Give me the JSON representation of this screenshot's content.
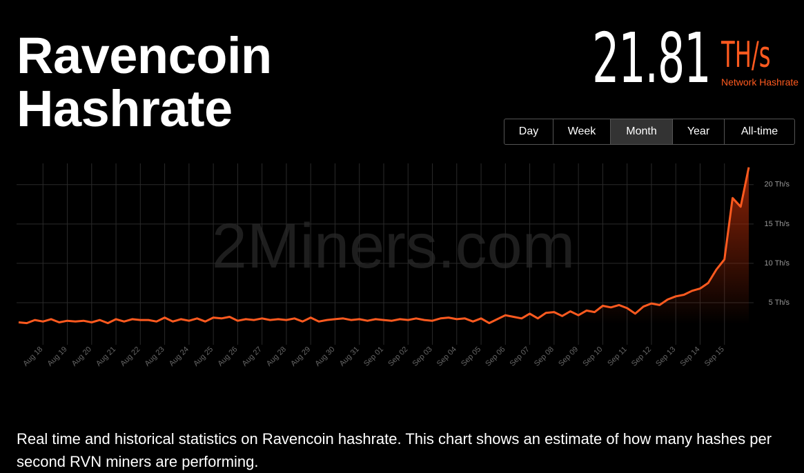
{
  "header": {
    "title_line1": "Ravencoin",
    "title_line2": "Hashrate",
    "hashrate_value": "21.81",
    "hashrate_unit": "TH/s",
    "hashrate_caption": "Network Hashrate"
  },
  "range_buttons": [
    "Day",
    "Week",
    "Month",
    "Year",
    "All-time"
  ],
  "description": "Real time and historical statistics on Ravencoin hashrate. This chart shows an estimate of how many hashes per second RVN miners are performing.",
  "chart_data": {
    "type": "line",
    "watermark": "2Miners.com",
    "categories": [
      null,
      null,
      null,
      "Aug 18",
      null,
      null,
      "Aug 19",
      null,
      null,
      "Aug 20",
      null,
      null,
      "Aug 21",
      null,
      null,
      "Aug 22",
      null,
      null,
      "Aug 23",
      null,
      null,
      "Aug 24",
      null,
      null,
      "Aug 25",
      null,
      null,
      "Aug 26",
      null,
      null,
      "Aug 27",
      null,
      null,
      "Aug 28",
      null,
      null,
      "Aug 29",
      null,
      null,
      "Aug 30",
      null,
      null,
      "Aug 31",
      null,
      null,
      "Sep 01",
      null,
      null,
      "Sep 02",
      null,
      null,
      "Sep 03",
      null,
      null,
      "Sep 04",
      null,
      null,
      "Sep 05",
      null,
      null,
      "Sep 06",
      null,
      null,
      "Sep 07",
      null,
      null,
      "Sep 08",
      null,
      null,
      "Sep 09",
      null,
      null,
      "Sep 10",
      null,
      null,
      "Sep 11",
      null,
      null,
      "Sep 12",
      null,
      null,
      "Sep 13",
      null,
      null,
      "Sep 14",
      null,
      null,
      "Sep 15",
      null,
      null,
      null
    ],
    "series": [
      {
        "name": "Hashrate",
        "color": "#ff5a1f",
        "values": [
          2.5,
          2.4,
          2.8,
          2.6,
          2.9,
          2.5,
          2.7,
          2.6,
          2.7,
          2.5,
          2.8,
          2.4,
          2.9,
          2.6,
          2.9,
          2.8,
          2.8,
          2.6,
          3.1,
          2.6,
          2.9,
          2.7,
          3.0,
          2.6,
          3.1,
          3.0,
          3.2,
          2.7,
          2.9,
          2.8,
          3.0,
          2.8,
          2.9,
          2.8,
          3.0,
          2.6,
          3.1,
          2.6,
          2.8,
          2.9,
          3.0,
          2.8,
          2.9,
          2.7,
          2.9,
          2.8,
          2.7,
          2.9,
          2.8,
          3.0,
          2.8,
          2.7,
          3.0,
          3.1,
          2.9,
          3.0,
          2.6,
          3.0,
          2.4,
          2.9,
          3.4,
          3.2,
          3.0,
          3.6,
          3.0,
          3.7,
          3.8,
          3.3,
          3.9,
          3.4,
          4.0,
          3.8,
          4.6,
          4.4,
          4.7,
          4.3,
          3.6,
          4.5,
          4.9,
          4.7,
          5.4,
          5.8,
          6.0,
          6.5,
          6.8,
          7.5,
          9.2,
          10.5,
          18.3,
          17.2,
          22.2
        ]
      }
    ],
    "ylim": [
      0,
      22.7
    ],
    "yticks": [
      {
        "value": 5,
        "label": "5 Th/s"
      },
      {
        "value": 10,
        "label": "10 Th/s"
      },
      {
        "value": 15,
        "label": "15 Th/s"
      },
      {
        "value": 20,
        "label": "20 Th/s"
      }
    ],
    "grid": true
  }
}
